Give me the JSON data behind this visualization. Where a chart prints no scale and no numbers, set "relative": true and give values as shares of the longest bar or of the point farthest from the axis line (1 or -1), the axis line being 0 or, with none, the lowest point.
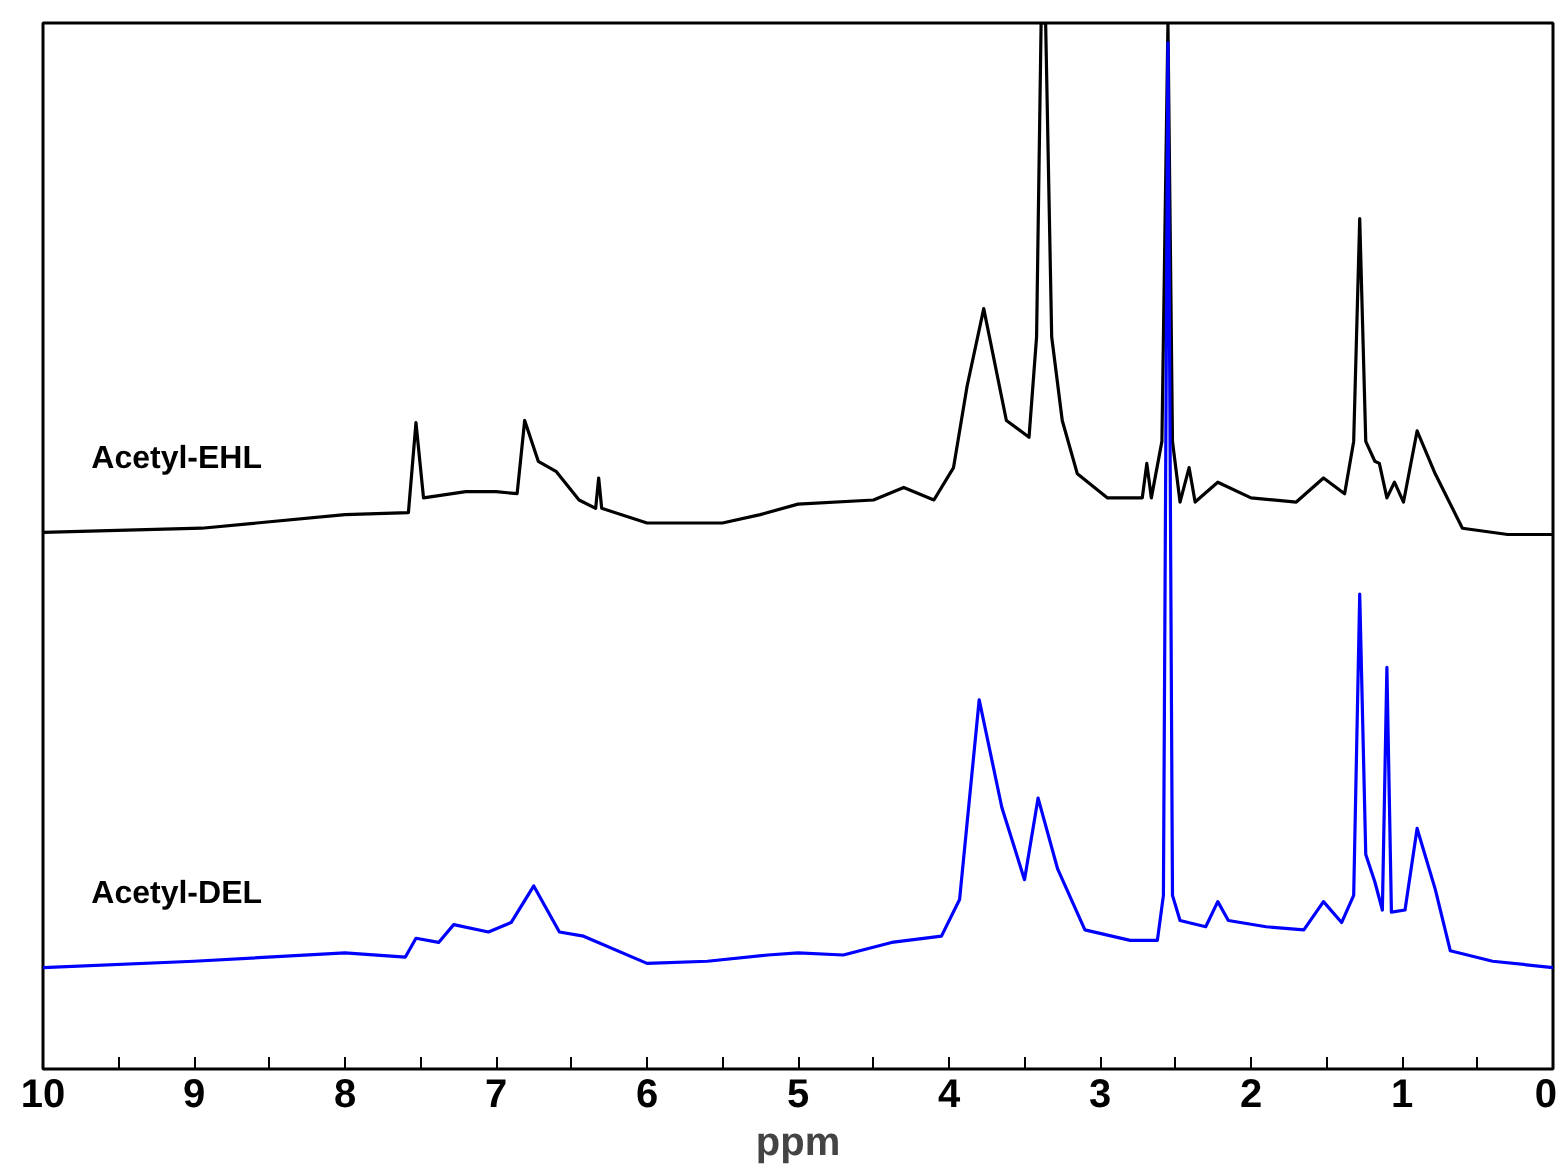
{
  "chart_data": {
    "type": "line",
    "relative": true,
    "xlabel": "ppm",
    "xlim": [
      10,
      0
    ],
    "xticks": [
      10,
      {
        "value": 9.5,
        "label": null
      },
      9,
      {
        "value": 8.5,
        "label": null
      },
      8,
      {
        "value": 7.5,
        "label": null
      },
      7,
      {
        "value": 6.5,
        "label": null
      },
      6,
      {
        "value": 5.5,
        "label": null
      },
      5,
      {
        "value": 4.5,
        "label": null
      },
      4,
      {
        "value": 3.5,
        "label": null
      },
      3,
      {
        "value": 2.5,
        "label": null
      },
      2,
      {
        "value": 1.5,
        "label": null
      },
      1,
      {
        "value": 0.5,
        "label": null
      },
      0
    ],
    "grid": false,
    "marker": "none",
    "line_style": "solid",
    "series": [
      {
        "name": "Acetyl-EHL",
        "color": "#000000",
        "x": [
          10,
          8.95,
          8.0,
          7.58,
          7.53,
          7.48,
          7.2,
          7.0,
          6.86,
          6.81,
          6.72,
          6.6,
          6.45,
          6.34,
          6.32,
          6.3,
          6.0,
          5.5,
          5.25,
          5.0,
          4.5,
          4.3,
          4.1,
          3.97,
          3.88,
          3.77,
          3.62,
          3.47,
          3.42,
          3.39,
          3.36,
          3.32,
          3.25,
          3.15,
          2.95,
          2.72,
          2.69,
          2.66,
          2.59,
          2.55,
          2.52,
          2.47,
          2.41,
          2.37,
          2.22,
          2.0,
          1.7,
          1.52,
          1.38,
          1.32,
          1.28,
          1.24,
          1.18,
          1.15,
          1.1,
          1.05,
          0.99,
          0.9,
          0.78,
          0.6,
          0.3,
          0
        ],
        "values": [
          0.513,
          0.517,
          0.53,
          0.532,
          0.618,
          0.546,
          0.552,
          0.552,
          0.55,
          0.62,
          0.581,
          0.571,
          0.544,
          0.536,
          0.565,
          0.536,
          0.522,
          0.522,
          0.53,
          0.54,
          0.544,
          0.556,
          0.544,
          0.575,
          0.653,
          0.727,
          0.62,
          0.604,
          0.7,
          1.0,
          1.0,
          0.7,
          0.62,
          0.569,
          0.546,
          0.546,
          0.579,
          0.546,
          0.6,
          1.0,
          0.6,
          0.542,
          0.575,
          0.542,
          0.561,
          0.546,
          0.542,
          0.565,
          0.55,
          0.6,
          0.813,
          0.6,
          0.581,
          0.579,
          0.546,
          0.561,
          0.542,
          0.61,
          0.569,
          0.517,
          0.511,
          0.511
        ]
      },
      {
        "name": "Acetyl-DEL",
        "color": "#0000ff",
        "x": [
          10,
          9,
          8,
          7.6,
          7.53,
          7.38,
          7.28,
          7.05,
          6.9,
          6.75,
          6.58,
          6.42,
          6.0,
          5.6,
          5.2,
          5.0,
          4.7,
          4.38,
          4.05,
          3.93,
          3.8,
          3.65,
          3.5,
          3.41,
          3.28,
          3.1,
          2.8,
          2.62,
          2.58,
          2.55,
          2.52,
          2.47,
          2.3,
          2.22,
          2.15,
          1.9,
          1.65,
          1.52,
          1.4,
          1.32,
          1.28,
          1.24,
          1.18,
          1.13,
          1.1,
          1.07,
          0.98,
          0.9,
          0.78,
          0.68,
          0.4,
          0
        ],
        "values": [
          0.097,
          0.103,
          0.111,
          0.107,
          0.125,
          0.121,
          0.138,
          0.131,
          0.14,
          0.175,
          0.131,
          0.127,
          0.101,
          0.103,
          0.109,
          0.111,
          0.109,
          0.121,
          0.127,
          0.162,
          0.353,
          0.25,
          0.181,
          0.259,
          0.191,
          0.133,
          0.123,
          0.123,
          0.166,
          0.981,
          0.166,
          0.142,
          0.136,
          0.16,
          0.142,
          0.136,
          0.133,
          0.16,
          0.14,
          0.166,
          0.454,
          0.205,
          0.179,
          0.152,
          0.384,
          0.15,
          0.152,
          0.23,
          0.172,
          0.113,
          0.103,
          0.097
        ]
      }
    ]
  }
}
